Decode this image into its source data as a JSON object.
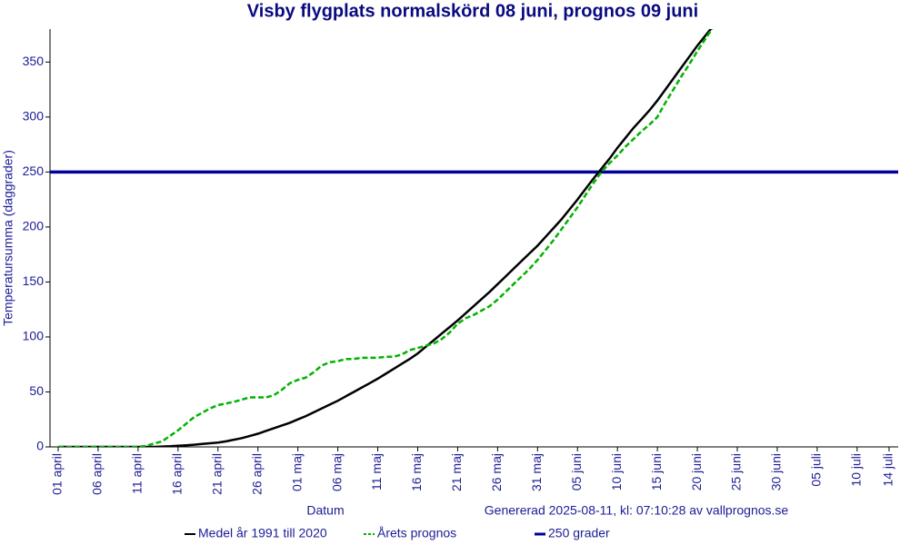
{
  "chart_data": {
    "type": "line",
    "title": "Visby flygplats normalskörd 08 juni, prognos 09 juni",
    "ylabel": "Temperatursumma (daggrader)",
    "xlabel": "Datum",
    "note": "Genererad 2025-08-11, kl: 07:10:28 av vallprognos.se",
    "categories": [
      "01 april",
      null,
      null,
      null,
      null,
      "06 april",
      null,
      null,
      null,
      null,
      "11 april",
      null,
      null,
      null,
      null,
      "16 april",
      null,
      null,
      null,
      null,
      "21 april",
      null,
      null,
      null,
      null,
      "26 april",
      null,
      null,
      null,
      null,
      "01 maj",
      null,
      null,
      null,
      null,
      "06 maj",
      null,
      null,
      null,
      null,
      "11 maj",
      null,
      null,
      null,
      null,
      "16 maj",
      null,
      null,
      null,
      null,
      "21 maj",
      null,
      null,
      null,
      null,
      "26 maj",
      null,
      null,
      null,
      null,
      "31 maj",
      null,
      null,
      null,
      null,
      "05 juni",
      null,
      null,
      null,
      null,
      "10 juni",
      null,
      null,
      null,
      null,
      "15 juni",
      null,
      null,
      null,
      null,
      "20 juni",
      null,
      null,
      null,
      null,
      "25 juni",
      null,
      null,
      null,
      null,
      "30 juni",
      null,
      null,
      null,
      null,
      "05 juli",
      null,
      null,
      null,
      null,
      "10 juli",
      null,
      null,
      null,
      "14 juli"
    ],
    "series": [
      {
        "name": "Medel år 1991 till 2020",
        "color": "#000000",
        "dash": false,
        "values": [
          0,
          0,
          0,
          0,
          0,
          0,
          0,
          0,
          0,
          0,
          0,
          0,
          0,
          0.3,
          0.6,
          1,
          1.5,
          2,
          2.7,
          3.3,
          4,
          5,
          6.5,
          8,
          10,
          12,
          14.5,
          17,
          19.5,
          22,
          25,
          28,
          31.5,
          35,
          38.5,
          42,
          46,
          50,
          54,
          58,
          62,
          66.5,
          71,
          75.5,
          80,
          85,
          91,
          97,
          103,
          109,
          115,
          121.5,
          128,
          134.5,
          141,
          148,
          155,
          162,
          169,
          176,
          183,
          191,
          199,
          207,
          216,
          225,
          234.5,
          244,
          253,
          262,
          272,
          281,
          290,
          298,
          306,
          315,
          325,
          335,
          345,
          355,
          365,
          374,
          383,
          null,
          null,
          null,
          null,
          null,
          null,
          null,
          null,
          null,
          null,
          null,
          null,
          null,
          null,
          null,
          null,
          null,
          null,
          null,
          null,
          null,
          null
        ]
      },
      {
        "name": "Årets prognos",
        "color": "#00b400",
        "dash": true,
        "values": [
          0,
          0,
          0,
          0,
          0,
          0,
          0,
          0,
          0,
          0,
          0,
          1,
          3,
          5,
          10,
          15,
          21,
          27,
          31,
          35,
          38,
          39.5,
          41,
          43,
          45,
          45,
          45,
          47,
          52,
          58,
          61,
          63,
          68,
          74,
          77,
          78,
          80,
          80,
          81,
          81,
          81,
          82,
          82,
          84,
          88,
          90,
          92,
          94,
          98,
          104,
          112,
          117,
          120,
          124,
          128,
          134,
          141,
          148,
          155,
          162,
          170,
          179,
          188,
          198,
          208,
          218,
          229,
          240,
          250,
          258,
          265,
          273,
          280,
          287,
          293,
          300,
          313,
          325,
          337,
          348,
          360,
          371,
          382,
          null,
          null,
          null,
          null,
          null,
          null,
          null,
          null,
          null,
          null,
          null,
          null,
          null,
          null,
          null,
          null,
          null,
          null,
          null,
          null,
          null,
          null
        ]
      }
    ],
    "hline": {
      "name": "250 grader",
      "value": 250,
      "color": "#0000a0"
    },
    "ylim": [
      0,
      380
    ],
    "yticks": [
      0,
      50,
      100,
      150,
      200,
      250,
      300,
      350
    ]
  }
}
